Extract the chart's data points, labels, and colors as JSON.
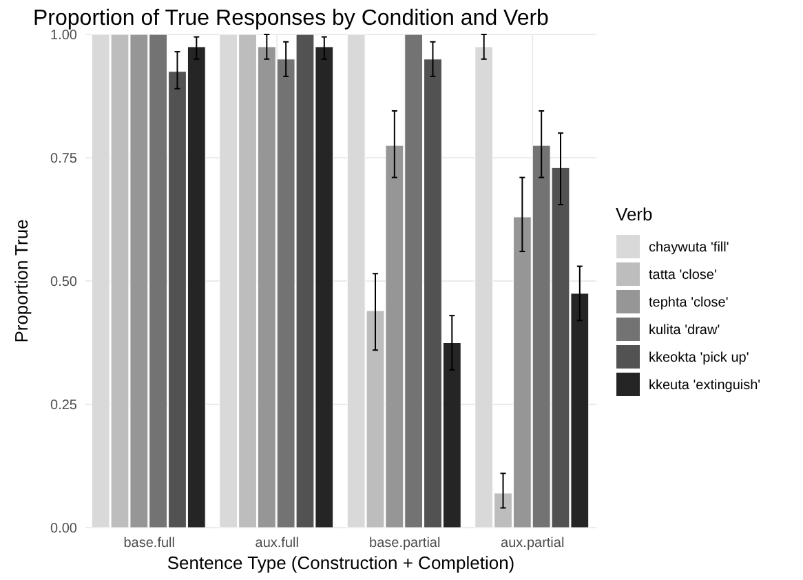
{
  "chart_data": {
    "type": "bar",
    "title": "Proportion of True Responses by Condition and Verb",
    "xlabel": "Sentence Type (Construction + Completion)",
    "ylabel": "Proportion True",
    "legend_title": "Verb",
    "legend": "right",
    "grid": true,
    "categories": [
      "base.full",
      "aux.full",
      "base.partial",
      "aux.partial"
    ],
    "ylim": [
      0,
      1
    ],
    "yticks": [
      {
        "value": 0,
        "label": "0.00"
      },
      {
        "value": 0.25,
        "label": "0.25"
      },
      {
        "value": 0.5,
        "label": "0.50"
      },
      {
        "value": 0.75,
        "label": "0.75"
      },
      {
        "value": 1,
        "label": "1.00"
      }
    ],
    "series": [
      {
        "name": "chaywuta 'fill'",
        "color": "#d9d9d9",
        "values": [
          1,
          1,
          1,
          0.975
        ],
        "errors": [
          null,
          null,
          null,
          [
            0.95,
            1
          ]
        ]
      },
      {
        "name": "tatta 'close'",
        "color": "#bdbdbd",
        "values": [
          1,
          1,
          0.44,
          0.07
        ],
        "errors": [
          null,
          null,
          [
            0.36,
            0.515
          ],
          [
            0.04,
            0.11
          ]
        ]
      },
      {
        "name": "tephta 'close'",
        "color": "#969696",
        "values": [
          1,
          0.975,
          0.775,
          0.63
        ],
        "errors": [
          null,
          [
            0.95,
            1
          ],
          [
            0.71,
            0.845
          ],
          [
            0.56,
            0.71
          ]
        ]
      },
      {
        "name": "kulita 'draw'",
        "color": "#737373",
        "values": [
          1,
          0.95,
          1,
          0.775
        ],
        "errors": [
          null,
          [
            0.915,
            0.985
          ],
          null,
          [
            0.71,
            0.845
          ]
        ]
      },
      {
        "name": "kkeokta 'pick up'",
        "color": "#525252",
        "values": [
          0.925,
          1,
          0.95,
          0.73
        ],
        "errors": [
          [
            0.89,
            0.965
          ],
          null,
          [
            0.915,
            0.985
          ],
          [
            0.655,
            0.8
          ]
        ]
      },
      {
        "name": "kkeuta 'extinguish'",
        "color": "#252525",
        "values": [
          0.975,
          0.975,
          0.375,
          0.475
        ],
        "errors": [
          [
            0.95,
            0.995
          ],
          [
            0.95,
            0.995
          ],
          [
            0.32,
            0.43
          ],
          [
            0.42,
            0.53
          ]
        ]
      }
    ]
  }
}
